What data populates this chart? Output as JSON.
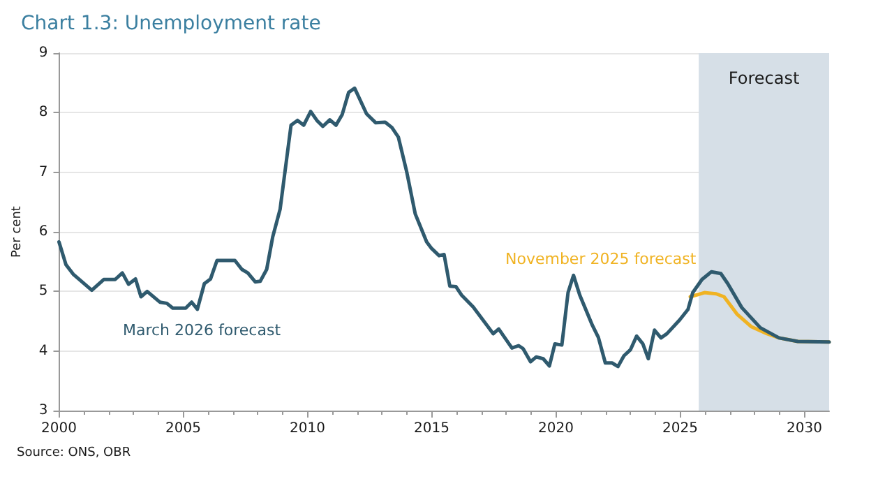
{
  "chart_data": {
    "type": "line",
    "title": "Chart 1.3: Unemployment rate",
    "ylabel": "Per cent",
    "annotations": [
      "Source: ONS, OBR"
    ],
    "xlim": [
      2000,
      2031
    ],
    "xticks": [
      2000,
      2005,
      2010,
      2015,
      2020,
      2025,
      2030
    ],
    "ylim": [
      3,
      9
    ],
    "yticks": [
      3,
      4,
      5,
      6,
      7,
      8,
      9
    ],
    "grid": "y",
    "legend": false,
    "marker": "none",
    "line_style": "solid",
    "bands": [
      {
        "axis": "x",
        "from": 2025.75,
        "to": 2031,
        "label": "Forecast",
        "color": "#d6dfe7"
      }
    ],
    "series": [
      {
        "name": "November 2025 forecast",
        "color": "#f0b323",
        "x": [
          2025.41,
          2025.98,
          2026.45,
          2026.77,
          2027.29,
          2027.86,
          2028.5,
          2028.98,
          2029.74,
          2031
        ],
        "values": [
          4.91,
          4.98,
          4.96,
          4.91,
          4.62,
          4.41,
          4.29,
          4.22,
          4.16,
          4.15
        ]
      },
      {
        "name": "March 2026 forecast",
        "color": "#2f5a6e",
        "x": [
          2000,
          2000.28,
          2000.57,
          2001.32,
          2001.8,
          2002.26,
          2002.55,
          2002.8,
          2003.08,
          2003.3,
          2003.55,
          2004.06,
          2004.34,
          2004.58,
          2005.1,
          2005.34,
          2005.57,
          2005.85,
          2006.1,
          2006.36,
          2007.08,
          2007.36,
          2007.6,
          2007.9,
          2008.1,
          2008.36,
          2008.6,
          2008.9,
          2009.34,
          2009.6,
          2009.85,
          2010.13,
          2010.38,
          2010.62,
          2010.9,
          2011.15,
          2011.4,
          2011.66,
          2011.9,
          2012.38,
          2012.75,
          2013.13,
          2013.4,
          2013.66,
          2014,
          2014.34,
          2014.8,
          2015,
          2015.3,
          2015.5,
          2015.73,
          2015.98,
          2016.2,
          2016.67,
          2017.48,
          2017.7,
          2018.23,
          2018.5,
          2018.68,
          2018.98,
          2019.21,
          2019.49,
          2019.74,
          2019.96,
          2020.24,
          2020.49,
          2020.71,
          2020.96,
          2021.47,
          2021.71,
          2021.99,
          2022.26,
          2022.5,
          2022.74,
          2023,
          2023.25,
          2023.5,
          2023.72,
          2023.97,
          2024.23,
          2024.47,
          2024.98,
          2025.32,
          2025.51,
          2025.88,
          2026.26,
          2026.64,
          2026.92,
          2027.48,
          2028.23,
          2028.98,
          2029.74,
          2031
        ],
        "values": [
          5.83,
          5.45,
          5.29,
          5.02,
          5.2,
          5.2,
          5.31,
          5.12,
          5.21,
          4.91,
          5,
          4.82,
          4.8,
          4.72,
          4.72,
          4.82,
          4.7,
          5.13,
          5.21,
          5.52,
          5.52,
          5.37,
          5.31,
          5.16,
          5.17,
          5.37,
          5.91,
          6.38,
          7.79,
          7.87,
          7.79,
          8.02,
          7.87,
          7.77,
          7.88,
          7.79,
          7.97,
          8.34,
          8.41,
          7.98,
          7.83,
          7.84,
          7.75,
          7.59,
          7,
          6.3,
          5.83,
          5.72,
          5.6,
          5.62,
          5.09,
          5.08,
          4.94,
          4.74,
          4.29,
          4.37,
          4.05,
          4.09,
          4.04,
          3.82,
          3.9,
          3.87,
          3.75,
          4.12,
          4.1,
          4.98,
          5.27,
          4.94,
          4.43,
          4.23,
          3.8,
          3.8,
          3.74,
          3.92,
          4.02,
          4.25,
          4.12,
          3.87,
          4.35,
          4.22,
          4.29,
          4.52,
          4.7,
          4.98,
          5.2,
          5.33,
          5.3,
          5.13,
          4.73,
          4.39,
          4.22,
          4.16,
          4.15
        ]
      }
    ]
  }
}
